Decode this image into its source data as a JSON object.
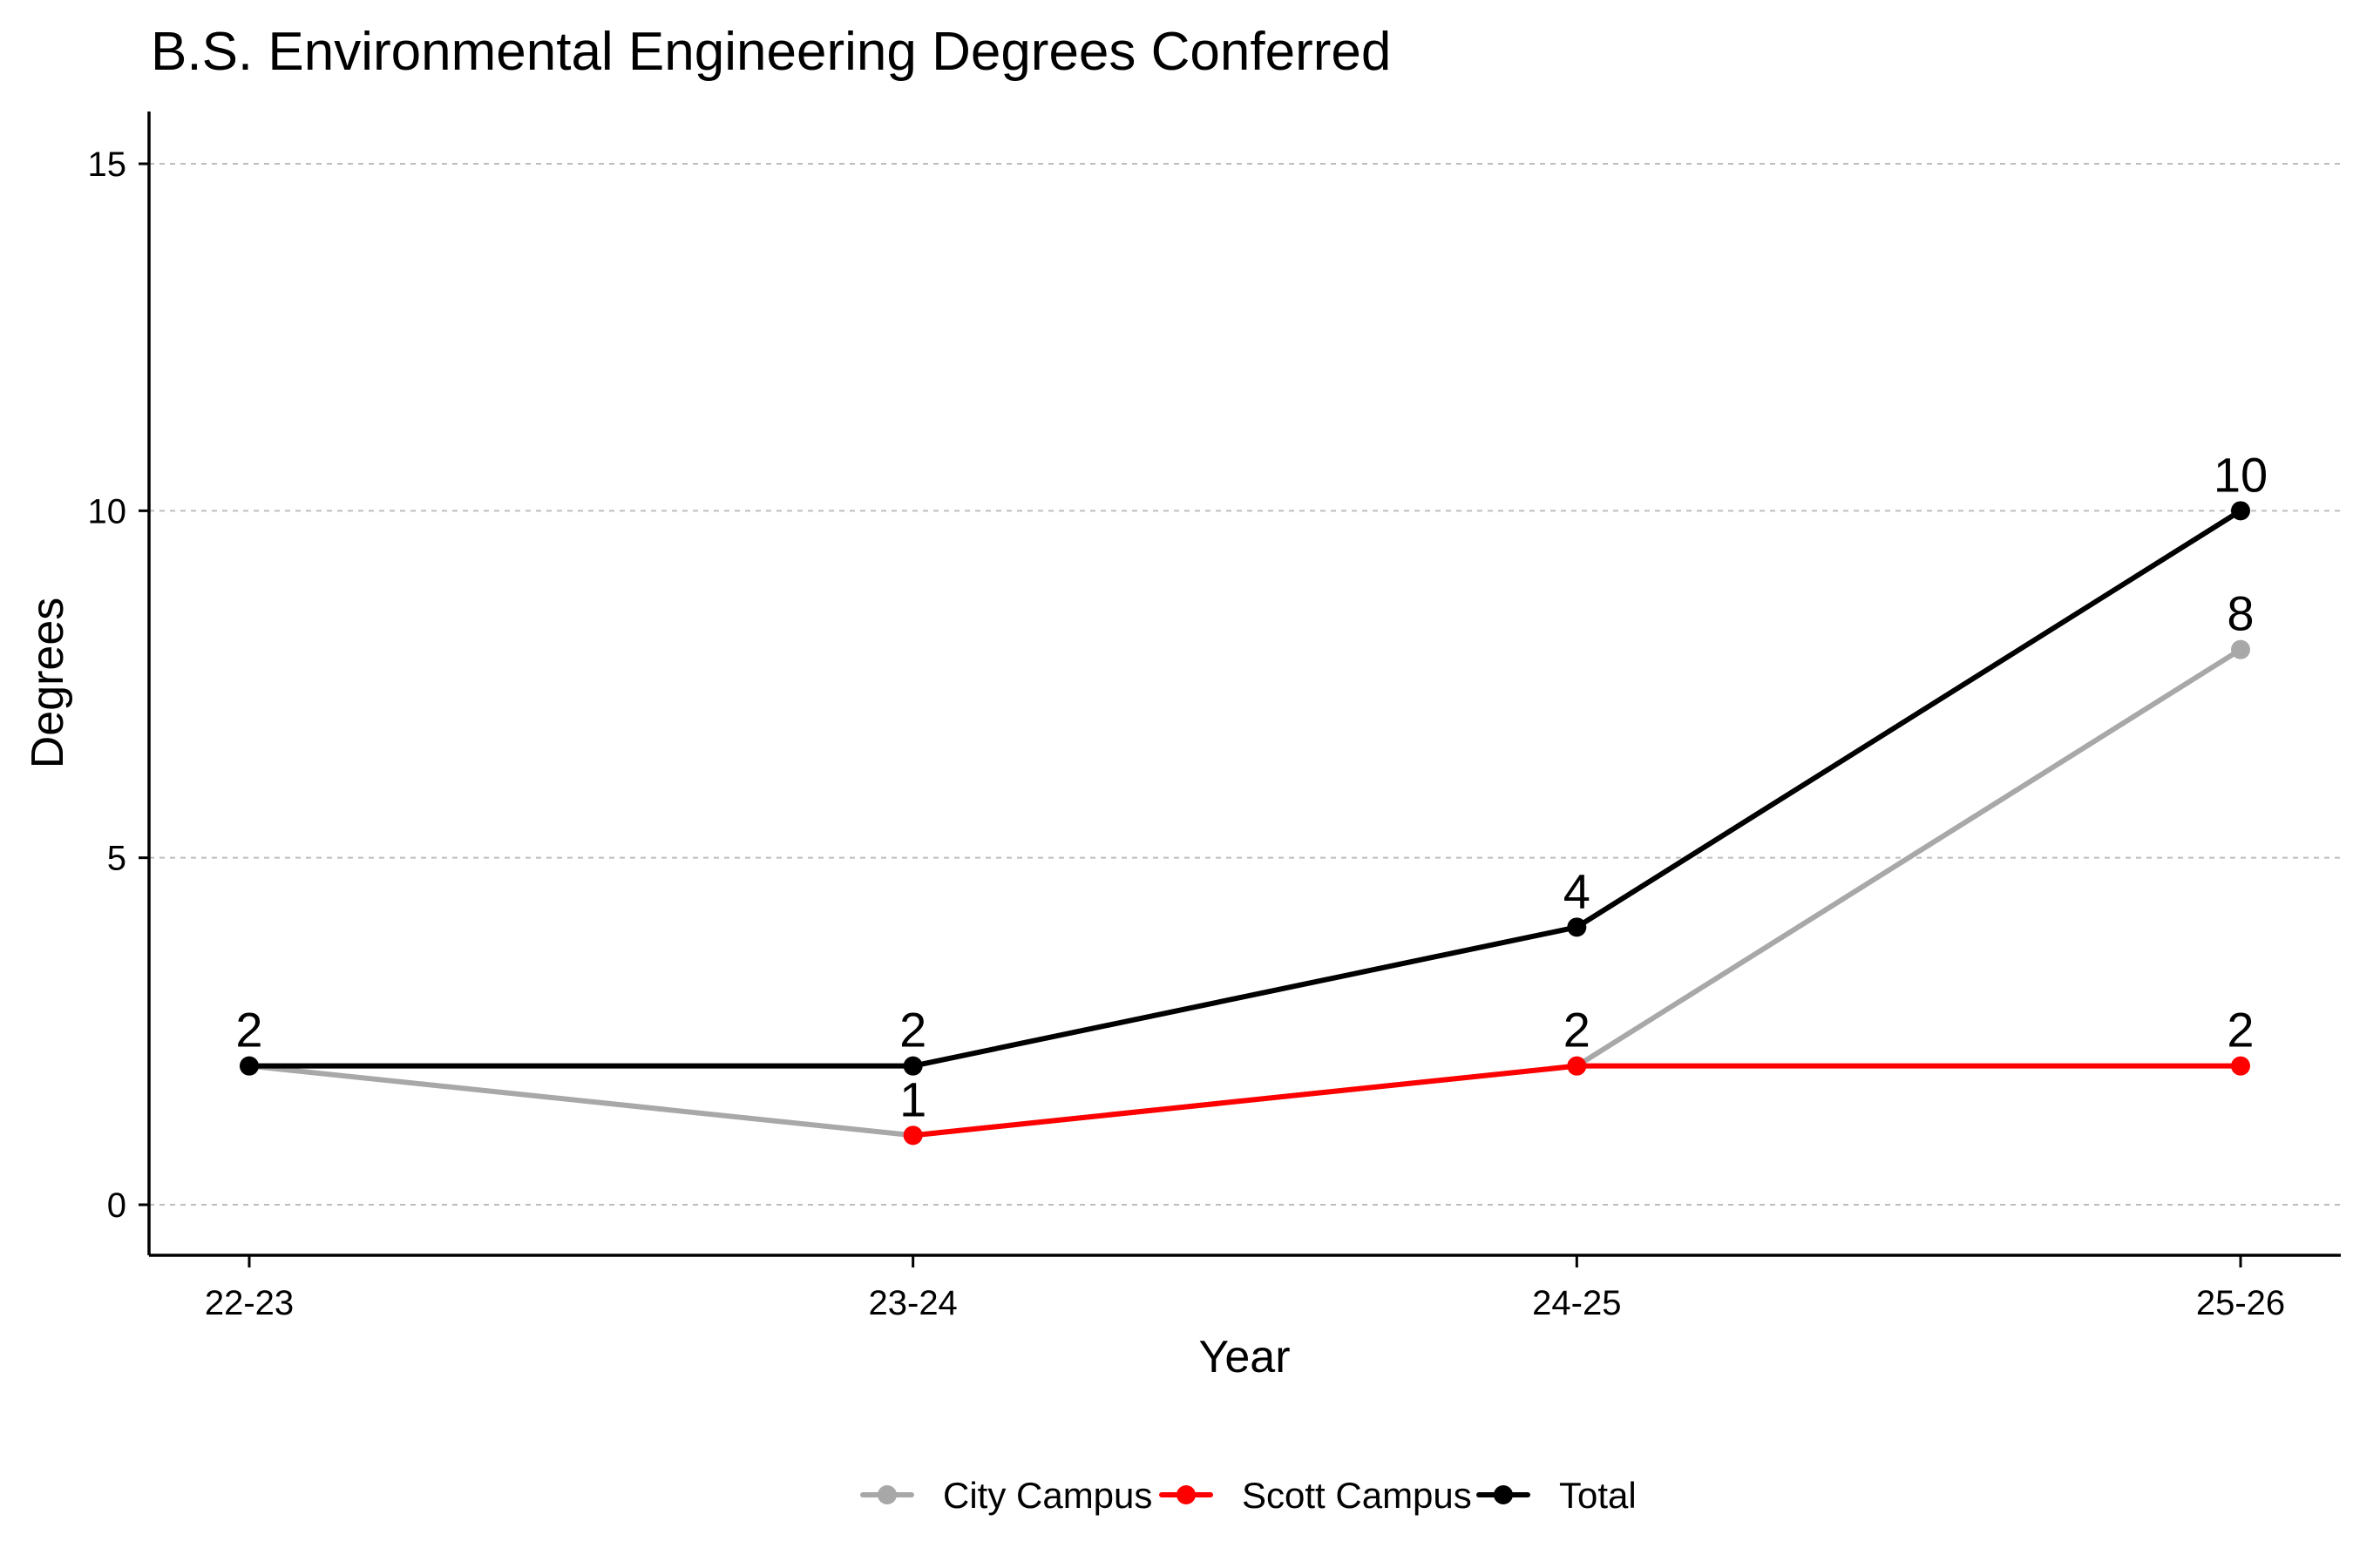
{
  "chart_data": {
    "type": "line",
    "title": "B.S. Environmental Engineering Degrees Conferred",
    "xlabel": "Year",
    "ylabel": "Degrees",
    "categories": [
      "22-23",
      "23-24",
      "24-25",
      "25-26"
    ],
    "ylim": [
      -0.7,
      15.8
    ],
    "yticks": [
      0,
      5,
      10,
      15
    ],
    "grid": "horizontal dashed",
    "legend_position": "bottom",
    "series": [
      {
        "name": "City Campus",
        "color": "#A8A8A8",
        "values": [
          2,
          1,
          2,
          8
        ],
        "labels": [
          "",
          "",
          "",
          "8"
        ]
      },
      {
        "name": "Scott Campus",
        "color": "#FF0000",
        "values": [
          null,
          1,
          2,
          2
        ],
        "labels": [
          "",
          "1",
          "",
          "2"
        ]
      },
      {
        "name": "Total",
        "color": "#000000",
        "values": [
          2,
          2,
          4,
          10
        ],
        "labels": [
          "2",
          "2",
          "4",
          "10"
        ]
      }
    ],
    "extra_labels": [
      {
        "x": "24-25",
        "y": 2,
        "text": "2"
      }
    ]
  }
}
